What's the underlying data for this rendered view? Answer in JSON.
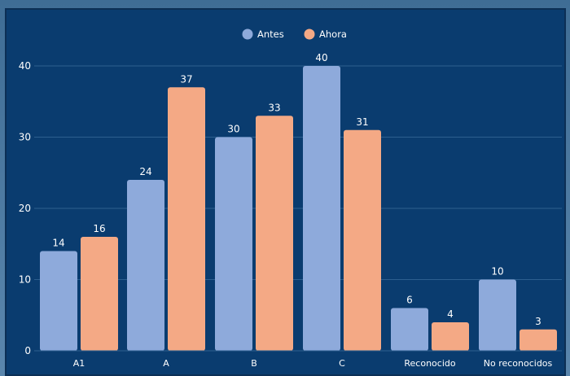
{
  "chart_data": {
    "type": "bar",
    "categories": [
      "A1",
      "A",
      "B",
      "C",
      "Reconocido",
      "No reconocidos"
    ],
    "series": [
      {
        "name": "Antes",
        "color": "#8eaadb",
        "values": [
          14,
          24,
          30,
          40,
          6,
          10
        ]
      },
      {
        "name": "Ahora",
        "color": "#f4a985",
        "values": [
          16,
          37,
          33,
          31,
          4,
          3
        ]
      }
    ],
    "yticks": [
      0,
      10,
      20,
      30,
      40
    ],
    "ylim": [
      0,
      40
    ],
    "grid": true,
    "legend": "top-center",
    "colors": {
      "background": "#0a3c6f",
      "grid": "#2d5f8f",
      "text": "#ffffff"
    }
  }
}
